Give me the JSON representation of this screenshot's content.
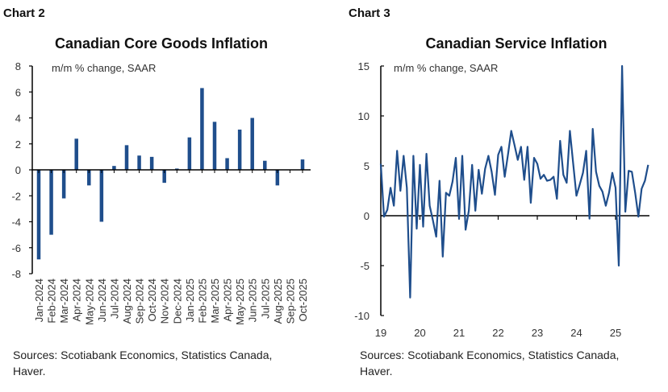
{
  "chart_data": [
    {
      "type": "bar",
      "header": "Chart 2",
      "title": "Canadian Core Goods Inflation",
      "subtitle": "m/m % change, SAAR",
      "source": [
        "Sources: Scotiabank Economics, Statistics Canada,",
        "Haver."
      ],
      "categories": [
        "Jan-2024",
        "Feb-2024",
        "Mar-2024",
        "Apr-2024",
        "May-2024",
        "Jun-2024",
        "Jul-2024",
        "Aug-2024",
        "Sep-2024",
        "Oct-2024",
        "Nov-2024",
        "Dec-2024",
        "Jan-2025",
        "Feb-2025",
        "Mar-2025",
        "Apr-2025",
        "May-2025",
        "Jun-2025",
        "Jul-2025",
        "Aug-2025",
        "Sep-2025",
        "Oct-2025"
      ],
      "values": [
        -6.9,
        -5.0,
        -2.2,
        2.4,
        -1.2,
        -4.0,
        0.3,
        1.9,
        1.1,
        1.0,
        -1.0,
        0.1,
        2.5,
        6.3,
        3.7,
        0.9,
        3.1,
        4.0,
        0.7,
        -1.2,
        0.0,
        0.8
      ],
      "ylim": [
        -8,
        8
      ],
      "yticks": [
        "8",
        "6",
        "4",
        "2",
        "0",
        "-2",
        "-4",
        "-6",
        "-8"
      ],
      "color": "#1f4e8c",
      "grid": false
    },
    {
      "type": "line",
      "header": "Chart 3",
      "title": "Canadian Service Inflation",
      "subtitle": "m/m % change, SAAR",
      "source": [
        "Sources: Scotiabank Economics, Statistics Canada,",
        "Haver."
      ],
      "x_start": "2019-01",
      "frequency": "monthly",
      "values": [
        5.2,
        -0.1,
        0.6,
        2.8,
        1.0,
        6.5,
        2.5,
        6.0,
        2.8,
        -8.2,
        6.0,
        -1.3,
        5.1,
        -1.1,
        6.2,
        1.0,
        -0.5,
        -2.1,
        3.5,
        -4.1,
        2.3,
        2.0,
        3.4,
        5.8,
        -0.3,
        6.0,
        -1.4,
        0.5,
        5.1,
        0.5,
        4.6,
        2.2,
        4.7,
        6.0,
        4.4,
        2.1,
        6.1,
        6.9,
        3.9,
        6.1,
        8.5,
        7.1,
        5.6,
        6.9,
        3.6,
        6.9,
        1.3,
        5.8,
        5.2,
        3.7,
        4.1,
        3.5,
        3.6,
        3.9,
        1.7,
        7.5,
        4.1,
        3.3,
        8.5,
        5.2,
        2.0,
        3.1,
        4.3,
        6.5,
        -0.3,
        8.7,
        4.4,
        3.0,
        2.4,
        1.0,
        2.3,
        4.3,
        2.8,
        -5.0,
        15.0,
        0.4,
        4.5,
        4.4,
        2.3,
        -0.1,
        2.7,
        3.5,
        5.1
      ],
      "ylim": [
        -10,
        15
      ],
      "yticks": [
        "15",
        "10",
        "5",
        "0",
        "-5",
        "-10"
      ],
      "xticks": [
        "19",
        "20",
        "21",
        "22",
        "23",
        "24",
        "25"
      ],
      "color": "#1f4e8c",
      "grid": false
    }
  ]
}
